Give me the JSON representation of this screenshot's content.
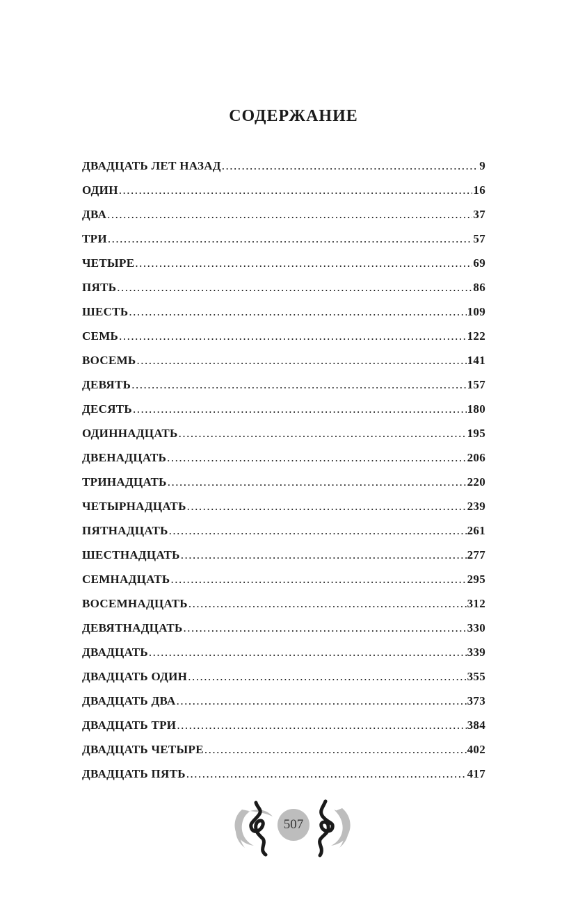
{
  "title": "СОДЕРЖАНИЕ",
  "entries": [
    {
      "label": "ДВАДЦАТЬ ЛЕТ НАЗАД",
      "page": "9"
    },
    {
      "label": "ОДИН",
      "page": "16"
    },
    {
      "label": "ДВА",
      "page": "37"
    },
    {
      "label": "ТРИ",
      "page": "57"
    },
    {
      "label": "ЧЕТЫРЕ",
      "page": "69"
    },
    {
      "label": "ПЯТЬ",
      "page": "86"
    },
    {
      "label": "ШЕСТЬ",
      "page": "109"
    },
    {
      "label": "СЕМЬ",
      "page": "122"
    },
    {
      "label": "ВОСЕМЬ",
      "page": "141"
    },
    {
      "label": "ДЕВЯТЬ",
      "page": "157"
    },
    {
      "label": "ДЕСЯТЬ",
      "page": "180"
    },
    {
      "label": "ОДИННАДЦАТЬ",
      "page": "195"
    },
    {
      "label": "ДВЕНАДЦАТЬ",
      "page": "206"
    },
    {
      "label": "ТРИНАДЦАТЬ",
      "page": "220"
    },
    {
      "label": "ЧЕТЫРНАДЦАТЬ",
      "page": "239"
    },
    {
      "label": "ПЯТНАДЦАТЬ",
      "page": "261"
    },
    {
      "label": "ШЕСТНАДЦАТЬ",
      "page": "277"
    },
    {
      "label": "СЕМНАДЦАТЬ",
      "page": "295"
    },
    {
      "label": "ВОСЕМНАДЦАТЬ",
      "page": "312"
    },
    {
      "label": "ДЕВЯТНАДЦАТЬ",
      "page": "330"
    },
    {
      "label": "ДВАДЦАТЬ",
      "page": "339"
    },
    {
      "label": "ДВАДЦАТЬ ОДИН",
      "page": "355"
    },
    {
      "label": "ДВАДЦАТЬ ДВА",
      "page": "373"
    },
    {
      "label": "ДВАДЦАТЬ ТРИ",
      "page": "384"
    },
    {
      "label": "ДВАДЦАТЬ ЧЕТЫРЕ",
      "page": "402"
    },
    {
      "label": "ДВАДЦАТЬ ПЯТЬ",
      "page": "417"
    }
  ],
  "footer": {
    "page_number": "507",
    "ornament": "snake-and-crescent-moon",
    "circle_color": "#bdbdbd"
  }
}
